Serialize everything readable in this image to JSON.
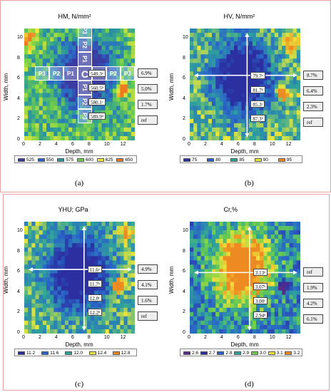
{
  "captions": [
    "(a)",
    "(b)",
    "(c)",
    "(d)"
  ],
  "common": {
    "xlabel": "Depth, mm",
    "ylabel": "Width, mm"
  },
  "chart_data": [
    {
      "type": "heatmap",
      "title": "HM, N/mm²",
      "xlabel": "Depth, mm",
      "ylabel": "Width, mm",
      "xlim": [
        0,
        13.5
      ],
      "ylim": [
        0,
        11
      ],
      "xticks": [
        "0",
        "2",
        "4",
        "6",
        "8",
        "10",
        "12"
      ],
      "yticks": [
        "0",
        "2",
        "4",
        "6",
        "8",
        "10"
      ],
      "legend": {
        "values": [
          "525",
          "550",
          "575",
          "600",
          "625",
          "650"
        ],
        "colors": [
          "#3b3ba0",
          "#2a66c9",
          "#2c9a9a",
          "#6fcf4a",
          "#f5e93a",
          "#ee7a22"
        ]
      },
      "scale": {
        "min": 515,
        "max": 655
      },
      "center": [
        7.4,
        6.6
      ],
      "low_spots": [
        {
          "x": 7.5,
          "y": 6.5,
          "r": 3.2,
          "d": 0.9
        }
      ],
      "high_spots": [
        {
          "x": 12,
          "y": 5,
          "r": 0.7,
          "d": 0.9
        },
        {
          "x": 0.5,
          "y": 10,
          "r": 0.9,
          "d": 0.5
        }
      ],
      "base": 0.55,
      "values": [
        "549.3ᵃ",
        "560.5ᵇ",
        "580.1ᶜ",
        "589.9ᵈ"
      ],
      "ratios": [
        "6.9%",
        "5.0%",
        "1.7%",
        "ref"
      ],
      "zones": {
        "center": "C",
        "p1": "P1",
        "p2": "P2",
        "p3": "P3"
      }
    },
    {
      "type": "heatmap",
      "title": "HV, N/mm²",
      "xlabel": "Depth, mm",
      "ylabel": "Width, mm",
      "xlim": [
        0,
        13.5
      ],
      "ylim": [
        0,
        11
      ],
      "xticks": [
        "0",
        "2",
        "4",
        "6",
        "8",
        "10",
        "12"
      ],
      "yticks": [
        "0",
        "2",
        "4",
        "6",
        "8",
        "10"
      ],
      "legend": {
        "values": [
          "75",
          "80",
          "85",
          "90",
          "95"
        ],
        "colors": [
          "#2b2fa0",
          "#2a66c9",
          "#2fa39a",
          "#e8e83a",
          "#ee8a22"
        ]
      },
      "scale": {
        "min": 72,
        "max": 97
      },
      "center": [
        7.0,
        6.4
      ],
      "low_spots": [
        {
          "x": 6.5,
          "y": 6.2,
          "r": 3.4,
          "d": 0.9
        }
      ],
      "high_spots": [
        {
          "x": 11.3,
          "y": 4.6,
          "r": 0.6,
          "d": 0.9
        },
        {
          "x": 12.5,
          "y": 9.5,
          "r": 1.0,
          "d": 0.4
        }
      ],
      "base": 0.58,
      "values": [
        "79.7ᵃ",
        "81.7ᵇ",
        "85.3ᶜ",
        "87.3ᵈ"
      ],
      "ratios": [
        "8.7%",
        "6.4%",
        "2.3%",
        "ref"
      ]
    },
    {
      "type": "heatmap",
      "title": "YHU; GPa",
      "xlabel": "Depth, mm",
      "ylabel": "Width, mm",
      "xlim": [
        0,
        13.5
      ],
      "ylim": [
        0,
        11
      ],
      "xticks": [
        "0",
        "2",
        "4",
        "6",
        "8",
        "10",
        "12"
      ],
      "yticks": [
        "0",
        "2",
        "4",
        "6",
        "8",
        "10"
      ],
      "legend": {
        "values": [
          "11.2",
          "11.6",
          "12.0",
          "12.4",
          "12.8"
        ],
        "colors": [
          "#2b2fa0",
          "#2a66c9",
          "#2fa39a",
          "#e8e83a",
          "#ee8a22"
        ]
      },
      "scale": {
        "min": 11.0,
        "max": 13.0
      },
      "center": [
        7.3,
        6.3
      ],
      "low_spots": [
        {
          "x": 6.6,
          "y": 6.0,
          "r": 3.5,
          "d": 0.9
        }
      ],
      "high_spots": [
        {
          "x": 11.5,
          "y": 4.7,
          "r": 0.6,
          "d": 0.9
        },
        {
          "x": 12.5,
          "y": 9.8,
          "r": 0.8,
          "d": 0.4
        }
      ],
      "base": 0.57,
      "values": [
        "11.6ᵃ",
        "11.7ᵇ",
        "12.0ᶜ",
        "12.2ᵈ"
      ],
      "ratios": [
        "4.9%",
        "4.1%",
        "1.6%",
        "ref"
      ]
    },
    {
      "type": "heatmap",
      "title": "Cr,%",
      "xlabel": "Depth, mm",
      "ylabel": "Width, mm",
      "xlim": [
        0,
        13.5
      ],
      "ylim": [
        0,
        11
      ],
      "xticks": [
        "0",
        "2",
        "4",
        "6",
        "8",
        "10",
        "12"
      ],
      "yticks": [
        "0",
        "2",
        "4",
        "6",
        "8",
        "10"
      ],
      "legend": {
        "values": [
          "2.6",
          "2.7",
          "2.8",
          "2.9",
          "3.0",
          "3.1",
          "3.2"
        ],
        "colors": [
          "#5a2a8a",
          "#2b2fa0",
          "#2a66c9",
          "#2fa39a",
          "#6fcf4a",
          "#f0e33a",
          "#ee8a22"
        ]
      },
      "scale": {
        "min": 2.55,
        "max": 3.25
      },
      "center": [
        7.3,
        6.0
      ],
      "low_spots": [
        {
          "x": 11.5,
          "y": 4.6,
          "r": 0.6,
          "d": 0.7
        }
      ],
      "high_spots": [
        {
          "x": 6.5,
          "y": 6.4,
          "r": 3.3,
          "d": 0.9
        }
      ],
      "base": 0.42,
      "values": [
        "3.13ᵃ",
        "3.07ᵇ",
        "3.00ᶜ",
        "2.94ᵈ"
      ],
      "ratios": [
        "ref",
        "1.9%",
        "4.2%",
        "6.1%"
      ]
    }
  ]
}
